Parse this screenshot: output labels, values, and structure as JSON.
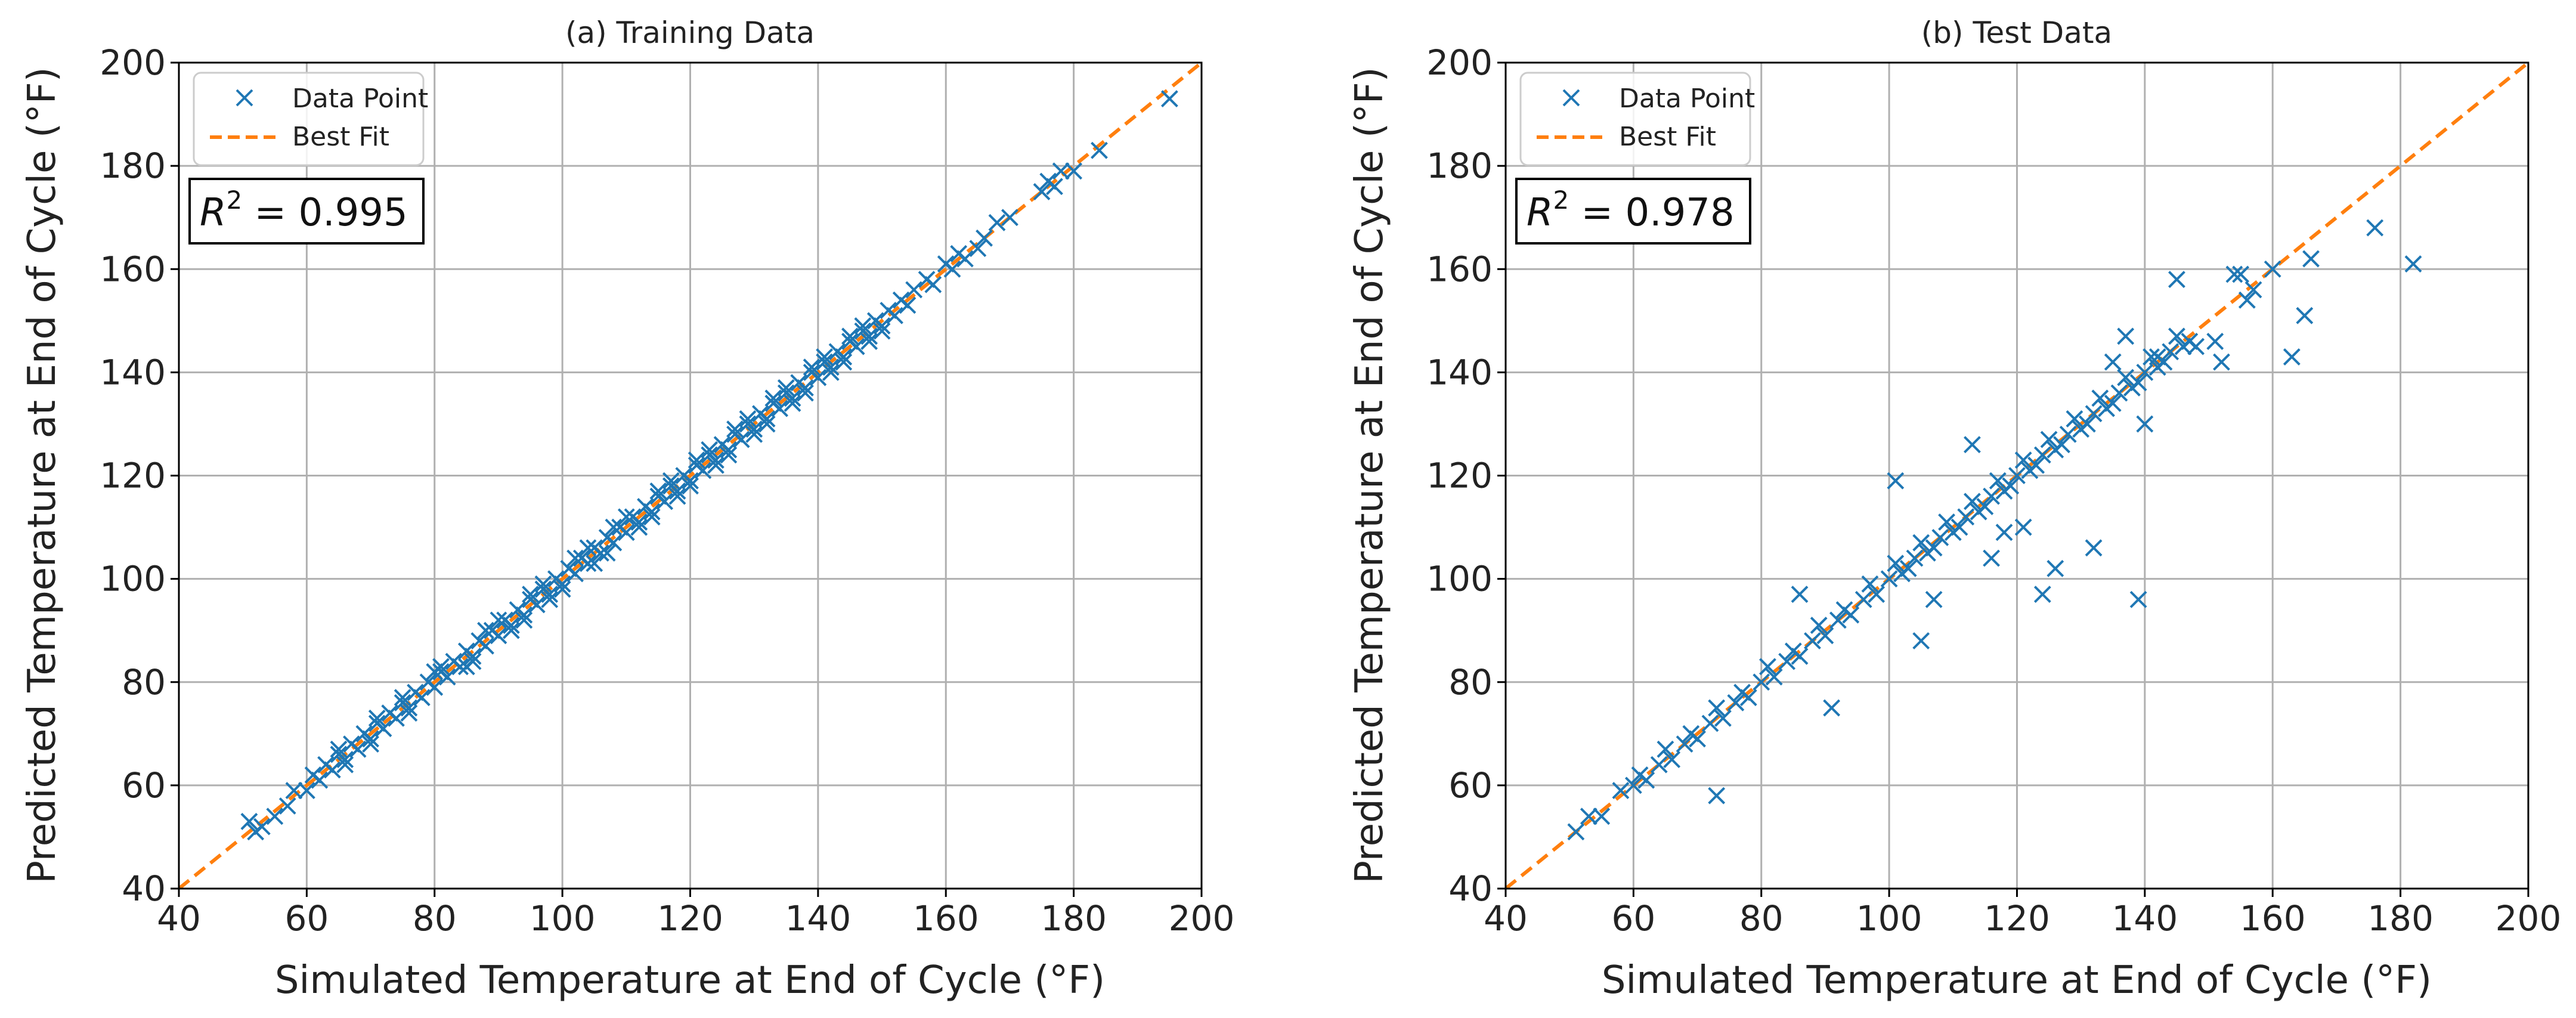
{
  "colors": {
    "points": "#1f77b4",
    "fit": "#ff7f0e",
    "grid": "#b0b0b0",
    "axis": "#000000"
  },
  "chart_data": [
    {
      "type": "scatter",
      "title": "(a) Training Data",
      "xlabel": "Simulated Temperature at End of Cycle (°F)",
      "ylabel": "Predicted Temperature at End of Cycle (°F)",
      "xlim": [
        40,
        200
      ],
      "ylim": [
        40,
        200
      ],
      "xticks": [
        "40",
        "60",
        "80",
        "100",
        "120",
        "140",
        "160",
        "180",
        "200"
      ],
      "yticks": [
        "40",
        "60",
        "80",
        "100",
        "120",
        "140",
        "160",
        "180",
        "200"
      ],
      "grid": true,
      "legend": {
        "position": "top-left",
        "entries": [
          "Data Point",
          "Best Fit"
        ]
      },
      "annotation": {
        "lhs": "R",
        "sup": "2",
        "rhs": " = 0.995"
      },
      "fit_line": {
        "x": [
          40,
          200
        ],
        "y": [
          40,
          200
        ]
      },
      "series": [
        {
          "name": "Data Point",
          "x": [
            51,
            52,
            53,
            55,
            57,
            58,
            60,
            61,
            62,
            63,
            64,
            65,
            66,
            67,
            68,
            69,
            70,
            71,
            72,
            73,
            74,
            75,
            76,
            77,
            78,
            79,
            80,
            81,
            82,
            83,
            84,
            85,
            86,
            87,
            88,
            89,
            90,
            91,
            92,
            93,
            94,
            95,
            96,
            97,
            98,
            99,
            100,
            101,
            102,
            103,
            104,
            105,
            106,
            107,
            108,
            109,
            110,
            111,
            112,
            113,
            114,
            115,
            116,
            117,
            118,
            119,
            120,
            121,
            122,
            123,
            124,
            125,
            126,
            127,
            128,
            129,
            130,
            131,
            132,
            133,
            134,
            135,
            136,
            137,
            138,
            139,
            140,
            141,
            142,
            143,
            144,
            145,
            146,
            147,
            148,
            149,
            150,
            151,
            152,
            153,
            154,
            155,
            157,
            158,
            160,
            161,
            162,
            163,
            165,
            166,
            168,
            170,
            175,
            176,
            177,
            178,
            180,
            184,
            195,
            65,
            70,
            75,
            80,
            85,
            88,
            92,
            95,
            98,
            102,
            105,
            108,
            112,
            115,
            118,
            121,
            124,
            127,
            130,
            133,
            136,
            139,
            142,
            145,
            148,
            66,
            71,
            76,
            81,
            86,
            90,
            94,
            97,
            100,
            104,
            107,
            110,
            114,
            117,
            120,
            123,
            126,
            129,
            132,
            135,
            138,
            141,
            144,
            147,
            150
          ],
          "y": [
            53,
            51,
            52,
            54,
            56,
            59,
            59,
            62,
            61,
            64,
            63,
            66,
            65,
            68,
            67,
            70,
            69,
            72,
            71,
            74,
            73,
            76,
            75,
            78,
            77,
            80,
            79,
            82,
            81,
            84,
            83,
            86,
            85,
            88,
            87,
            90,
            89,
            92,
            91,
            94,
            93,
            96,
            95,
            98,
            97,
            100,
            99,
            102,
            101,
            104,
            103,
            106,
            105,
            108,
            107,
            110,
            109,
            112,
            111,
            114,
            113,
            116,
            115,
            118,
            117,
            120,
            119,
            122,
            121,
            124,
            123,
            126,
            125,
            128,
            127,
            130,
            129,
            132,
            131,
            134,
            133,
            136,
            135,
            138,
            137,
            140,
            139,
            142,
            141,
            144,
            143,
            146,
            145,
            148,
            147,
            150,
            149,
            152,
            151,
            154,
            153,
            156,
            158,
            157,
            161,
            160,
            163,
            162,
            164,
            166,
            169,
            170,
            175,
            177,
            176,
            179,
            179,
            183,
            193,
            67,
            68,
            77,
            82,
            83,
            90,
            90,
            97,
            96,
            104,
            103,
            110,
            110,
            117,
            116,
            123,
            122,
            129,
            128,
            135,
            134,
            141,
            140,
            147,
            146,
            64,
            73,
            74,
            83,
            84,
            92,
            92,
            99,
            98,
            106,
            105,
            112,
            112,
            119,
            118,
            125,
            124,
            131,
            130,
            137,
            136,
            143,
            142,
            149,
            148
          ]
        }
      ]
    },
    {
      "type": "scatter",
      "title": "(b) Test Data",
      "xlabel": "Simulated Temperature at End of Cycle (°F)",
      "ylabel": "Predicted Temperature at End of Cycle (°F)",
      "xlim": [
        40,
        200
      ],
      "ylim": [
        40,
        200
      ],
      "xticks": [
        "40",
        "60",
        "80",
        "100",
        "120",
        "140",
        "160",
        "180",
        "200"
      ],
      "yticks": [
        "40",
        "60",
        "80",
        "100",
        "120",
        "140",
        "160",
        "180",
        "200"
      ],
      "grid": true,
      "legend": {
        "position": "top-left",
        "entries": [
          "Data Point",
          "Best Fit"
        ]
      },
      "annotation": {
        "lhs": "R",
        "sup": "2",
        "rhs": " = 0.978"
      },
      "fit_line": {
        "x": [
          40,
          200
        ],
        "y": [
          40,
          200
        ]
      },
      "series": [
        {
          "name": "Data Point",
          "x": [
            51,
            53,
            55,
            58,
            60,
            62,
            64,
            66,
            68,
            70,
            72,
            74,
            76,
            78,
            80,
            82,
            84,
            86,
            88,
            90,
            92,
            94,
            96,
            98,
            100,
            102,
            104,
            106,
            108,
            110,
            112,
            114,
            116,
            118,
            120,
            122,
            124,
            126,
            128,
            130,
            132,
            134,
            136,
            138,
            140,
            142,
            144,
            146,
            61,
            65,
            69,
            73,
            77,
            81,
            85,
            89,
            93,
            97,
            101,
            103,
            105,
            107,
            109,
            111,
            113,
            115,
            117,
            119,
            121,
            123,
            125,
            127,
            129,
            131,
            133,
            135,
            137,
            139,
            141,
            143,
            145,
            147,
            73,
            86,
            91,
            101,
            105,
            107,
            113,
            116,
            118,
            121,
            124,
            126,
            132,
            135,
            139,
            140,
            142,
            148,
            151,
            152,
            155,
            157,
            160,
            163,
            165,
            166,
            176,
            182,
            137,
            145,
            154,
            156
          ],
          "y": [
            51,
            54,
            54,
            59,
            60,
            61,
            64,
            65,
            68,
            69,
            72,
            73,
            76,
            77,
            80,
            81,
            84,
            85,
            88,
            89,
            92,
            93,
            96,
            97,
            100,
            101,
            104,
            105,
            108,
            109,
            112,
            113,
            116,
            117,
            120,
            121,
            124,
            125,
            128,
            129,
            132,
            133,
            136,
            137,
            140,
            141,
            144,
            145,
            62,
            67,
            70,
            75,
            78,
            83,
            86,
            91,
            94,
            99,
            103,
            102,
            107,
            106,
            111,
            110,
            115,
            114,
            119,
            118,
            123,
            122,
            127,
            126,
            131,
            130,
            135,
            134,
            139,
            138,
            143,
            142,
            147,
            146,
            58,
            97,
            75,
            119,
            88,
            96,
            126,
            104,
            109,
            110,
            97,
            102,
            106,
            142,
            96,
            130,
            143,
            145,
            146,
            142,
            159,
            156,
            160,
            143,
            151,
            162,
            168,
            161,
            147,
            158,
            159,
            154
          ]
        }
      ]
    }
  ]
}
